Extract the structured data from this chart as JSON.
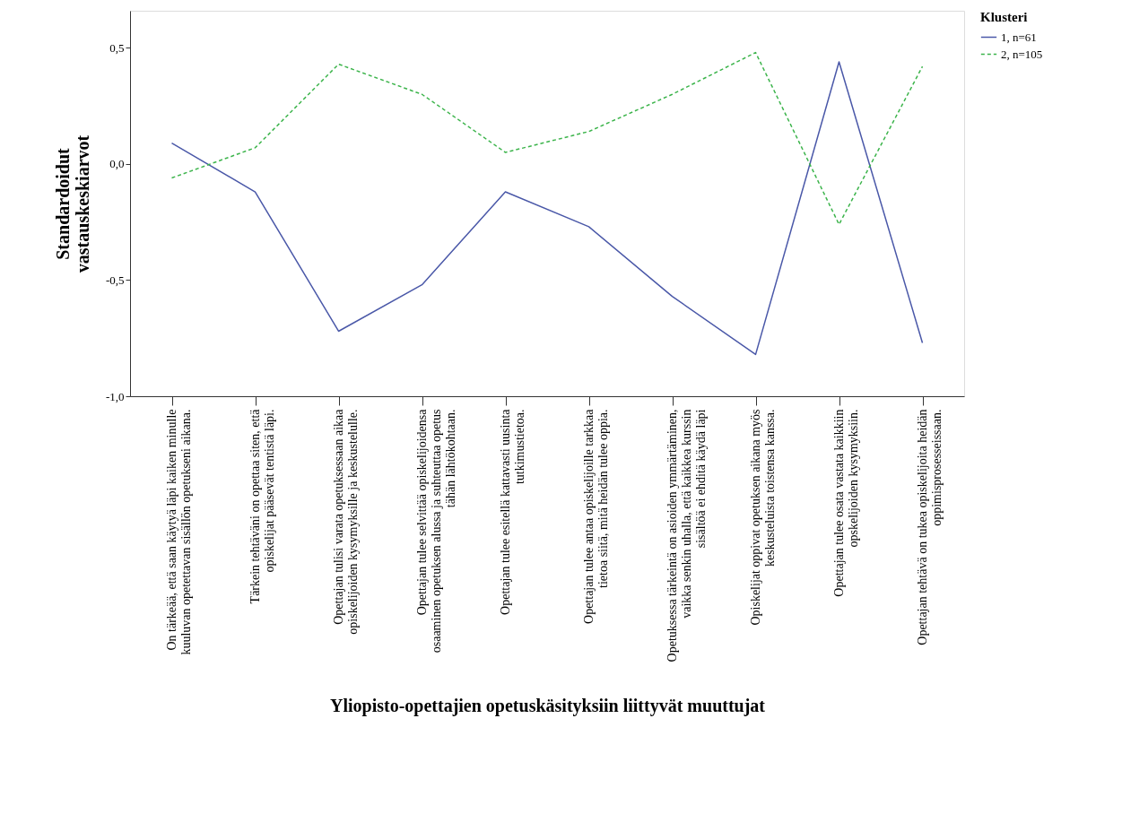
{
  "chart_data": {
    "type": "line",
    "xlabel": "Yliopisto-opettajien opetuskäsityksiin liittyvät muuttujat",
    "ylabel": "Standardoidut vastauskeskiarvot",
    "legend_title": "Klusteri",
    "categories": [
      "On tärkeää, että saan käytyä läpi kaiken minulle kuuluvan opetettavan sisällön opetukseni aikana.",
      "Tärkein tehtäväni on opettaa siten, että opiskelijat pääsevät tentistä läpi.",
      "Opettajan tulisi varata opetuksessaan aikaa opiskelijoiden kysymyksille ja keskustelulle.",
      "Opettajan tulee selvittää opiskelijoidensa osaaminen opetuksen alussa ja suhteuttaa opetus tähän lähtökohtaan.",
      "Opettajan tulee esitellä kattavasti uusinta tutkimustietoa.",
      "Opettajan tulee antaa opiskelijoille tarkkaa tietoa siitä, mitä heidän tulee oppia.",
      "Opetuksessa tärkeintä on asioiden ymmärtäminen, vaikka senkin uhalla, että kaikkea kurssin sisältöä ei ehditä käydä läpi",
      "Opiskelijat oppivat opetuksen aikana myös keskusteluista toistensa kanssa.",
      "Opettajan tulee osata vastata kaikkiin opskelijoiden kysymyksiin.",
      "Opettajan tehtävä on tukea opiskelijoita heidän oppimisprosesseissaan."
    ],
    "series": [
      {
        "name": "1, n=61",
        "color": "#4a58a8",
        "line_style": "solid",
        "values": [
          0.09,
          -0.12,
          -0.72,
          -0.52,
          -0.12,
          -0.27,
          -0.57,
          -0.82,
          0.44,
          -0.77
        ]
      },
      {
        "name": "2, n=105",
        "color": "#3cb44b",
        "line_style": "dashed",
        "values": [
          -0.06,
          0.07,
          0.43,
          0.3,
          0.05,
          0.14,
          0.3,
          0.48,
          -0.26,
          0.42
        ]
      }
    ],
    "ylim": [
      -1.0,
      0.66
    ],
    "yticks": [
      {
        "value": -1.0,
        "label": "-1,0"
      },
      {
        "value": -0.5,
        "label": "-0,5"
      },
      {
        "value": 0.0,
        "label": "0,0"
      },
      {
        "value": 0.5,
        "label": "0,5"
      }
    ],
    "grid": false,
    "legend": "right",
    "marker": "none"
  }
}
